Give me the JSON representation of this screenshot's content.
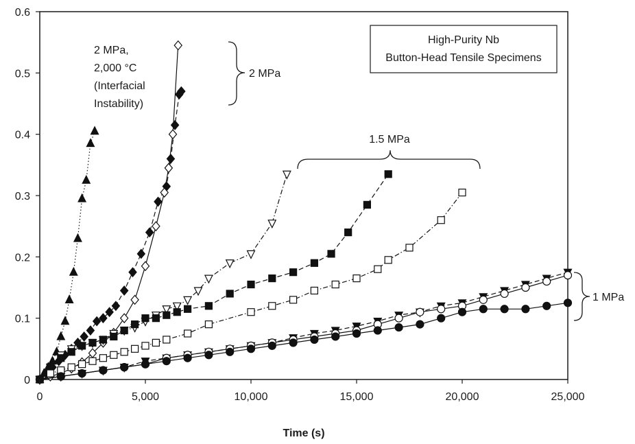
{
  "chart_data": {
    "type": "scatter",
    "title": "",
    "xlabel": "Time (s)",
    "ylabel": "",
    "xlim": [
      0,
      25000
    ],
    "ylim": [
      0,
      0.6
    ],
    "x_ticks": [
      0,
      5000,
      10000,
      15000,
      20000,
      25000
    ],
    "x_tick_labels": [
      "0",
      "5,000",
      "10,000",
      "15,000",
      "20,000",
      "25,000"
    ],
    "y_ticks": [
      0,
      0.1,
      0.2,
      0.3,
      0.4,
      0.5,
      0.6
    ],
    "y_tick_labels": [
      "0",
      "0.1",
      "0.2",
      "0.3",
      "0.4",
      "0.5",
      "0.6"
    ],
    "grid": false,
    "legend_box": {
      "line1": "High-Purity Nb",
      "line2": "Button-Head Tensile Specimens"
    },
    "annotations": {
      "instability": {
        "line1": "2 MPa,",
        "line2": "2,000 °C",
        "line3": "(Interfacial",
        "line4": "Instability)"
      },
      "group_2mpa": "2 MPa",
      "group_15mpa": "1.5 MPa",
      "group_1mpa": "1 MPa"
    },
    "series": [
      {
        "marker": "triangle-up",
        "fill": "filled",
        "line": "dotted",
        "x": [
          0,
          200,
          400,
          600,
          800,
          1000,
          1200,
          1400,
          1600,
          1800,
          2000,
          2200,
          2400,
          2600
        ],
        "y": [
          0.0,
          0.01,
          0.02,
          0.03,
          0.045,
          0.07,
          0.095,
          0.13,
          0.175,
          0.23,
          0.295,
          0.325,
          0.385,
          0.405
        ]
      },
      {
        "marker": "diamond",
        "fill": "filled",
        "line": "dashed",
        "x": [
          0,
          300,
          600,
          900,
          1200,
          1500,
          1800,
          2100,
          2400,
          2700,
          3000,
          3300,
          3600,
          4000,
          4400,
          4800,
          5200,
          5600,
          6000,
          6200,
          6400,
          6600,
          6700
        ],
        "y": [
          0.0,
          0.01,
          0.02,
          0.03,
          0.04,
          0.05,
          0.06,
          0.07,
          0.08,
          0.095,
          0.1,
          0.11,
          0.12,
          0.145,
          0.175,
          0.205,
          0.24,
          0.29,
          0.315,
          0.36,
          0.415,
          0.465,
          0.47
        ]
      },
      {
        "marker": "diamond",
        "fill": "open",
        "line": "solid",
        "x": [
          0,
          500,
          1000,
          1500,
          2000,
          2500,
          3000,
          3500,
          4000,
          4500,
          5000,
          5500,
          5900,
          6100,
          6300,
          6550
        ],
        "y": [
          0.0,
          0.005,
          0.01,
          0.018,
          0.028,
          0.043,
          0.06,
          0.076,
          0.1,
          0.13,
          0.185,
          0.25,
          0.305,
          0.345,
          0.4,
          0.545
        ]
      },
      {
        "marker": "triangle-down",
        "fill": "open",
        "line": "dash-dot",
        "x": [
          0,
          500,
          1000,
          1500,
          2000,
          2500,
          3000,
          3500,
          4000,
          4500,
          5000,
          5500,
          6000,
          6500,
          7000,
          7500,
          8000,
          9000,
          10000,
          11000,
          11700
        ],
        "y": [
          0.0,
          0.02,
          0.04,
          0.05,
          0.055,
          0.06,
          0.065,
          0.075,
          0.08,
          0.085,
          0.095,
          0.105,
          0.115,
          0.12,
          0.13,
          0.145,
          0.165,
          0.19,
          0.205,
          0.255,
          0.335
        ]
      },
      {
        "marker": "square",
        "fill": "filled",
        "line": "dashed",
        "x": [
          0,
          500,
          1000,
          1500,
          2000,
          2500,
          3000,
          3500,
          4000,
          4500,
          5000,
          5500,
          6000,
          6500,
          7000,
          8000,
          9000,
          10000,
          11000,
          12000,
          13000,
          13800,
          14600,
          15500,
          16500
        ],
        "y": [
          0.0,
          0.02,
          0.035,
          0.045,
          0.055,
          0.06,
          0.065,
          0.07,
          0.08,
          0.09,
          0.1,
          0.1,
          0.105,
          0.11,
          0.115,
          0.12,
          0.14,
          0.155,
          0.165,
          0.175,
          0.19,
          0.205,
          0.24,
          0.285,
          0.335
        ]
      },
      {
        "marker": "square",
        "fill": "open",
        "line": "dash-dot",
        "x": [
          0,
          500,
          1000,
          1500,
          2000,
          2500,
          3000,
          3500,
          4000,
          4500,
          5000,
          5500,
          6000,
          7000,
          8000,
          10000,
          11000,
          12000,
          13000,
          14000,
          15000,
          16000,
          16500,
          17500,
          19000,
          20000
        ],
        "y": [
          0.0,
          0.01,
          0.015,
          0.02,
          0.025,
          0.03,
          0.035,
          0.04,
          0.045,
          0.05,
          0.055,
          0.06,
          0.065,
          0.075,
          0.09,
          0.11,
          0.12,
          0.13,
          0.145,
          0.155,
          0.165,
          0.18,
          0.195,
          0.215,
          0.26,
          0.305
        ]
      },
      {
        "marker": "triangle-down",
        "fill": "filled",
        "line": "dashed",
        "x": [
          0,
          1000,
          2000,
          3000,
          4000,
          5000,
          6000,
          7000,
          8000,
          9000,
          10000,
          11000,
          12000,
          13000,
          14000,
          15000,
          16000,
          17000,
          18000,
          19000,
          20000,
          21000,
          22000,
          23000,
          24000,
          25000
        ],
        "y": [
          0.0,
          0.005,
          0.01,
          0.015,
          0.02,
          0.03,
          0.035,
          0.04,
          0.045,
          0.05,
          0.055,
          0.06,
          0.068,
          0.075,
          0.08,
          0.087,
          0.095,
          0.105,
          0.11,
          0.12,
          0.125,
          0.135,
          0.145,
          0.155,
          0.165,
          0.175
        ]
      },
      {
        "marker": "circle",
        "fill": "open",
        "line": "solid",
        "x": [
          0,
          1000,
          2000,
          3000,
          4000,
          5000,
          6000,
          7000,
          8000,
          9000,
          10000,
          11000,
          12000,
          13000,
          14000,
          15000,
          16000,
          17000,
          18000,
          19000,
          20000,
          21000,
          22000,
          23000,
          24000,
          25000
        ],
        "y": [
          0.0,
          0.005,
          0.01,
          0.015,
          0.02,
          0.025,
          0.035,
          0.04,
          0.045,
          0.05,
          0.055,
          0.06,
          0.065,
          0.07,
          0.075,
          0.08,
          0.09,
          0.1,
          0.11,
          0.115,
          0.12,
          0.13,
          0.14,
          0.15,
          0.16,
          0.17
        ]
      },
      {
        "marker": "circle",
        "fill": "filled",
        "line": "solid",
        "x": [
          0,
          1000,
          2000,
          3000,
          4000,
          5000,
          6000,
          7000,
          8000,
          9000,
          10000,
          11000,
          12000,
          13000,
          14000,
          15000,
          16000,
          17000,
          18000,
          19000,
          20000,
          21000,
          22000,
          23000,
          24000,
          25000
        ],
        "y": [
          0.0,
          0.005,
          0.01,
          0.015,
          0.02,
          0.025,
          0.03,
          0.035,
          0.04,
          0.045,
          0.05,
          0.055,
          0.06,
          0.065,
          0.07,
          0.075,
          0.08,
          0.085,
          0.09,
          0.1,
          0.11,
          0.115,
          0.115,
          0.115,
          0.12,
          0.125
        ]
      }
    ]
  }
}
